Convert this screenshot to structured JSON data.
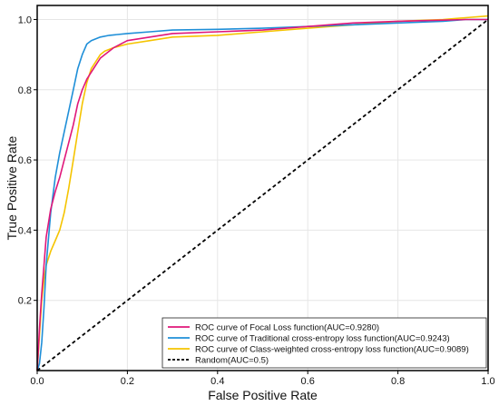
{
  "chart_data": {
    "type": "line",
    "title": "",
    "xlabel": "False Positive Rate",
    "ylabel": "True Positive Rate",
    "xlim": [
      0,
      1
    ],
    "ylim": [
      0,
      1.04
    ],
    "x_ticks": [
      "0.0",
      "0.2",
      "0.4",
      "0.6",
      "0.8",
      "1.0"
    ],
    "y_ticks": [
      "0.2",
      "0.4",
      "0.6",
      "0.8",
      "1.0"
    ],
    "grid": true,
    "legend_position": "bottom-right",
    "series": [
      {
        "name": "ROC curve of Focal Loss function(AUC=0.9280)",
        "color": "#e0177a",
        "dash": "",
        "x": [
          0.0,
          0.005,
          0.01,
          0.015,
          0.02,
          0.03,
          0.04,
          0.05,
          0.06,
          0.07,
          0.08,
          0.09,
          0.1,
          0.11,
          0.12,
          0.13,
          0.14,
          0.15,
          0.17,
          0.2,
          0.25,
          0.3,
          0.4,
          0.5,
          0.6,
          0.7,
          0.8,
          0.9,
          0.95,
          1.0
        ],
        "y": [
          0.0,
          0.12,
          0.22,
          0.3,
          0.38,
          0.46,
          0.51,
          0.55,
          0.6,
          0.65,
          0.7,
          0.76,
          0.8,
          0.83,
          0.85,
          0.87,
          0.89,
          0.9,
          0.92,
          0.94,
          0.95,
          0.96,
          0.965,
          0.97,
          0.98,
          0.99,
          0.995,
          0.998,
          1.0,
          1.0
        ]
      },
      {
        "name": "ROC curve of Traditional cross-entropy loss function(AUC=0.9243)",
        "color": "#1f8fd8",
        "dash": "",
        "x": [
          0.0,
          0.005,
          0.01,
          0.015,
          0.02,
          0.03,
          0.04,
          0.05,
          0.06,
          0.07,
          0.08,
          0.09,
          0.1,
          0.11,
          0.12,
          0.14,
          0.16,
          0.2,
          0.25,
          0.3,
          0.4,
          0.5,
          0.6,
          0.7,
          0.8,
          0.9,
          0.95,
          1.0
        ],
        "y": [
          0.0,
          0.02,
          0.08,
          0.18,
          0.3,
          0.45,
          0.55,
          0.62,
          0.68,
          0.74,
          0.8,
          0.86,
          0.9,
          0.93,
          0.94,
          0.95,
          0.955,
          0.96,
          0.965,
          0.97,
          0.972,
          0.975,
          0.98,
          0.985,
          0.99,
          0.995,
          1.0,
          1.0
        ]
      },
      {
        "name": "ROC curve of Class-weighted cross-entropy loss function(AUC=0.9089)",
        "color": "#f5c400",
        "dash": "",
        "x": [
          0.0,
          0.005,
          0.01,
          0.015,
          0.02,
          0.03,
          0.04,
          0.05,
          0.06,
          0.07,
          0.08,
          0.09,
          0.1,
          0.11,
          0.12,
          0.13,
          0.14,
          0.15,
          0.17,
          0.2,
          0.25,
          0.3,
          0.4,
          0.5,
          0.6,
          0.7,
          0.8,
          0.9,
          0.95,
          1.0
        ],
        "y": [
          0.0,
          0.1,
          0.2,
          0.26,
          0.3,
          0.34,
          0.37,
          0.4,
          0.45,
          0.52,
          0.6,
          0.68,
          0.76,
          0.82,
          0.86,
          0.88,
          0.9,
          0.91,
          0.92,
          0.93,
          0.94,
          0.95,
          0.955,
          0.965,
          0.975,
          0.985,
          0.995,
          1.0,
          1.005,
          1.01
        ]
      },
      {
        "name": "Random(AUC=0.5)",
        "color": "#000000",
        "dash": "4,3",
        "x": [
          0.0,
          1.0
        ],
        "y": [
          0.0,
          1.0
        ]
      }
    ]
  }
}
